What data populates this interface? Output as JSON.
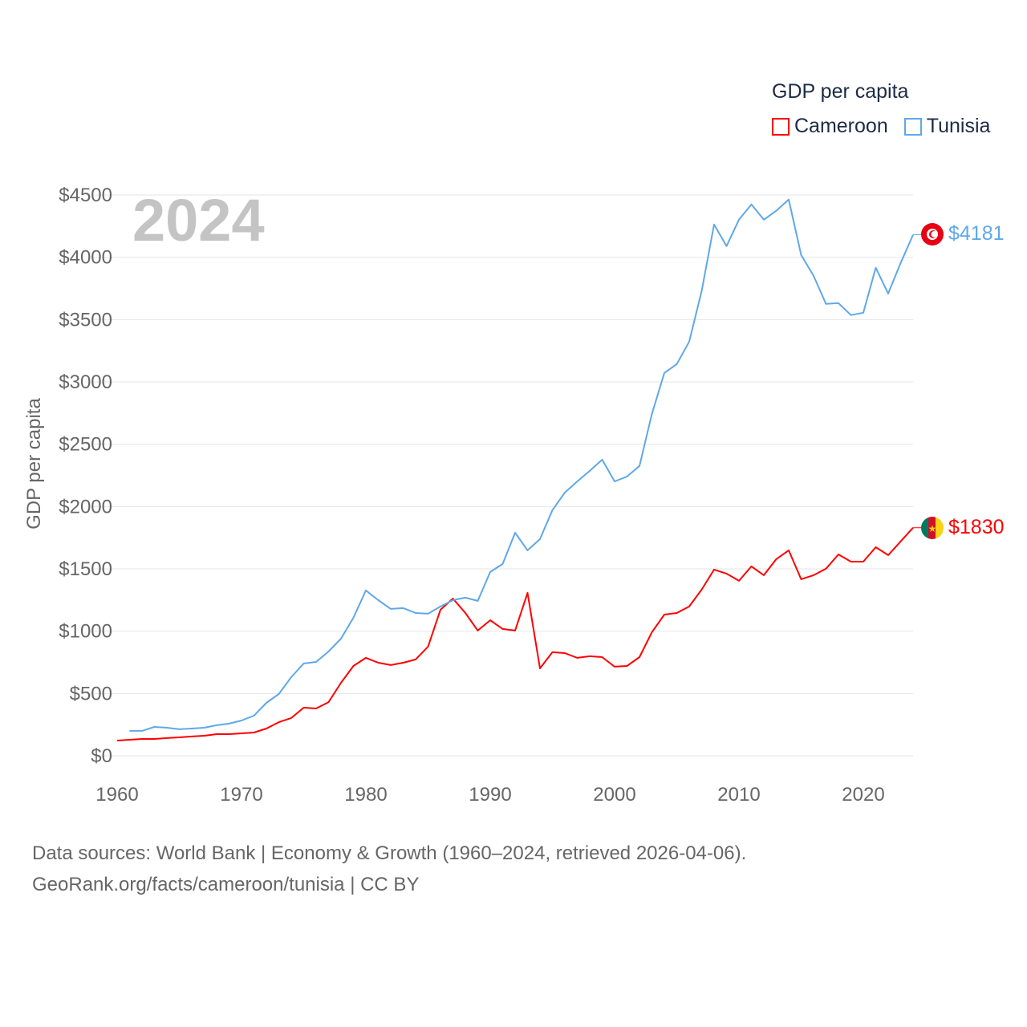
{
  "chart_data": {
    "type": "line",
    "title": "2024",
    "ylabel": "GDP per capita",
    "xlabel": "",
    "xlim": [
      1960,
      2024
    ],
    "ylim": [
      0,
      4500
    ],
    "x_ticks": [
      "1960",
      "1970",
      "1980",
      "1990",
      "2000",
      "2010",
      "2020"
    ],
    "y_ticks": [
      "$0",
      "$500",
      "$1000",
      "$1500",
      "$2000",
      "$2500",
      "$3000",
      "$3500",
      "$4000",
      "$4500"
    ],
    "grid": true,
    "legend_title": "GDP per capita",
    "legend_position": "top-right",
    "series": [
      {
        "name": "Cameroon",
        "color": "#ff0000",
        "start_year": 1960,
        "end_label": "$1830",
        "values": [
          122,
          129,
          135,
          135,
          142,
          148,
          155,
          161,
          174,
          174,
          180,
          187,
          219,
          270,
          303,
          386,
          380,
          431,
          586,
          721,
          786,
          747,
          728,
          747,
          773,
          876,
          1172,
          1262,
          1146,
          1005,
          1088,
          1018,
          1005,
          1307,
          702,
          831,
          824,
          786,
          799,
          792,
          715,
          721,
          792,
          992,
          1133,
          1146,
          1198,
          1333,
          1494,
          1462,
          1404,
          1520,
          1449,
          1578,
          1649,
          1417,
          1449,
          1501,
          1616,
          1558,
          1558,
          1674,
          1610,
          1720,
          1830
        ]
      },
      {
        "name": "Tunisia",
        "color": "#5fa8e8",
        "start_year": 1961,
        "end_label": "$4181",
        "values": [
          200,
          200,
          232,
          225,
          213,
          219,
          225,
          245,
          258,
          283,
          322,
          425,
          496,
          631,
          741,
          753,
          837,
          940,
          1108,
          1327,
          1249,
          1179,
          1185,
          1146,
          1140,
          1198,
          1249,
          1269,
          1243,
          1475,
          1539,
          1790,
          1649,
          1739,
          1971,
          2112,
          2202,
          2286,
          2376,
          2202,
          2241,
          2325,
          2743,
          3072,
          3143,
          3323,
          3729,
          4263,
          4089,
          4302,
          4424,
          4302,
          4373,
          4463,
          4019,
          3851,
          3626,
          3632,
          3536,
          3555,
          3916,
          3709,
          3954,
          4181
        ]
      }
    ]
  },
  "footer": {
    "line1": "Data sources: World Bank | Economy & Growth (1960–2024, retrieved 2026-04-06).",
    "line2": "GeoRank.org/facts/cameroon/tunisia | CC BY"
  }
}
